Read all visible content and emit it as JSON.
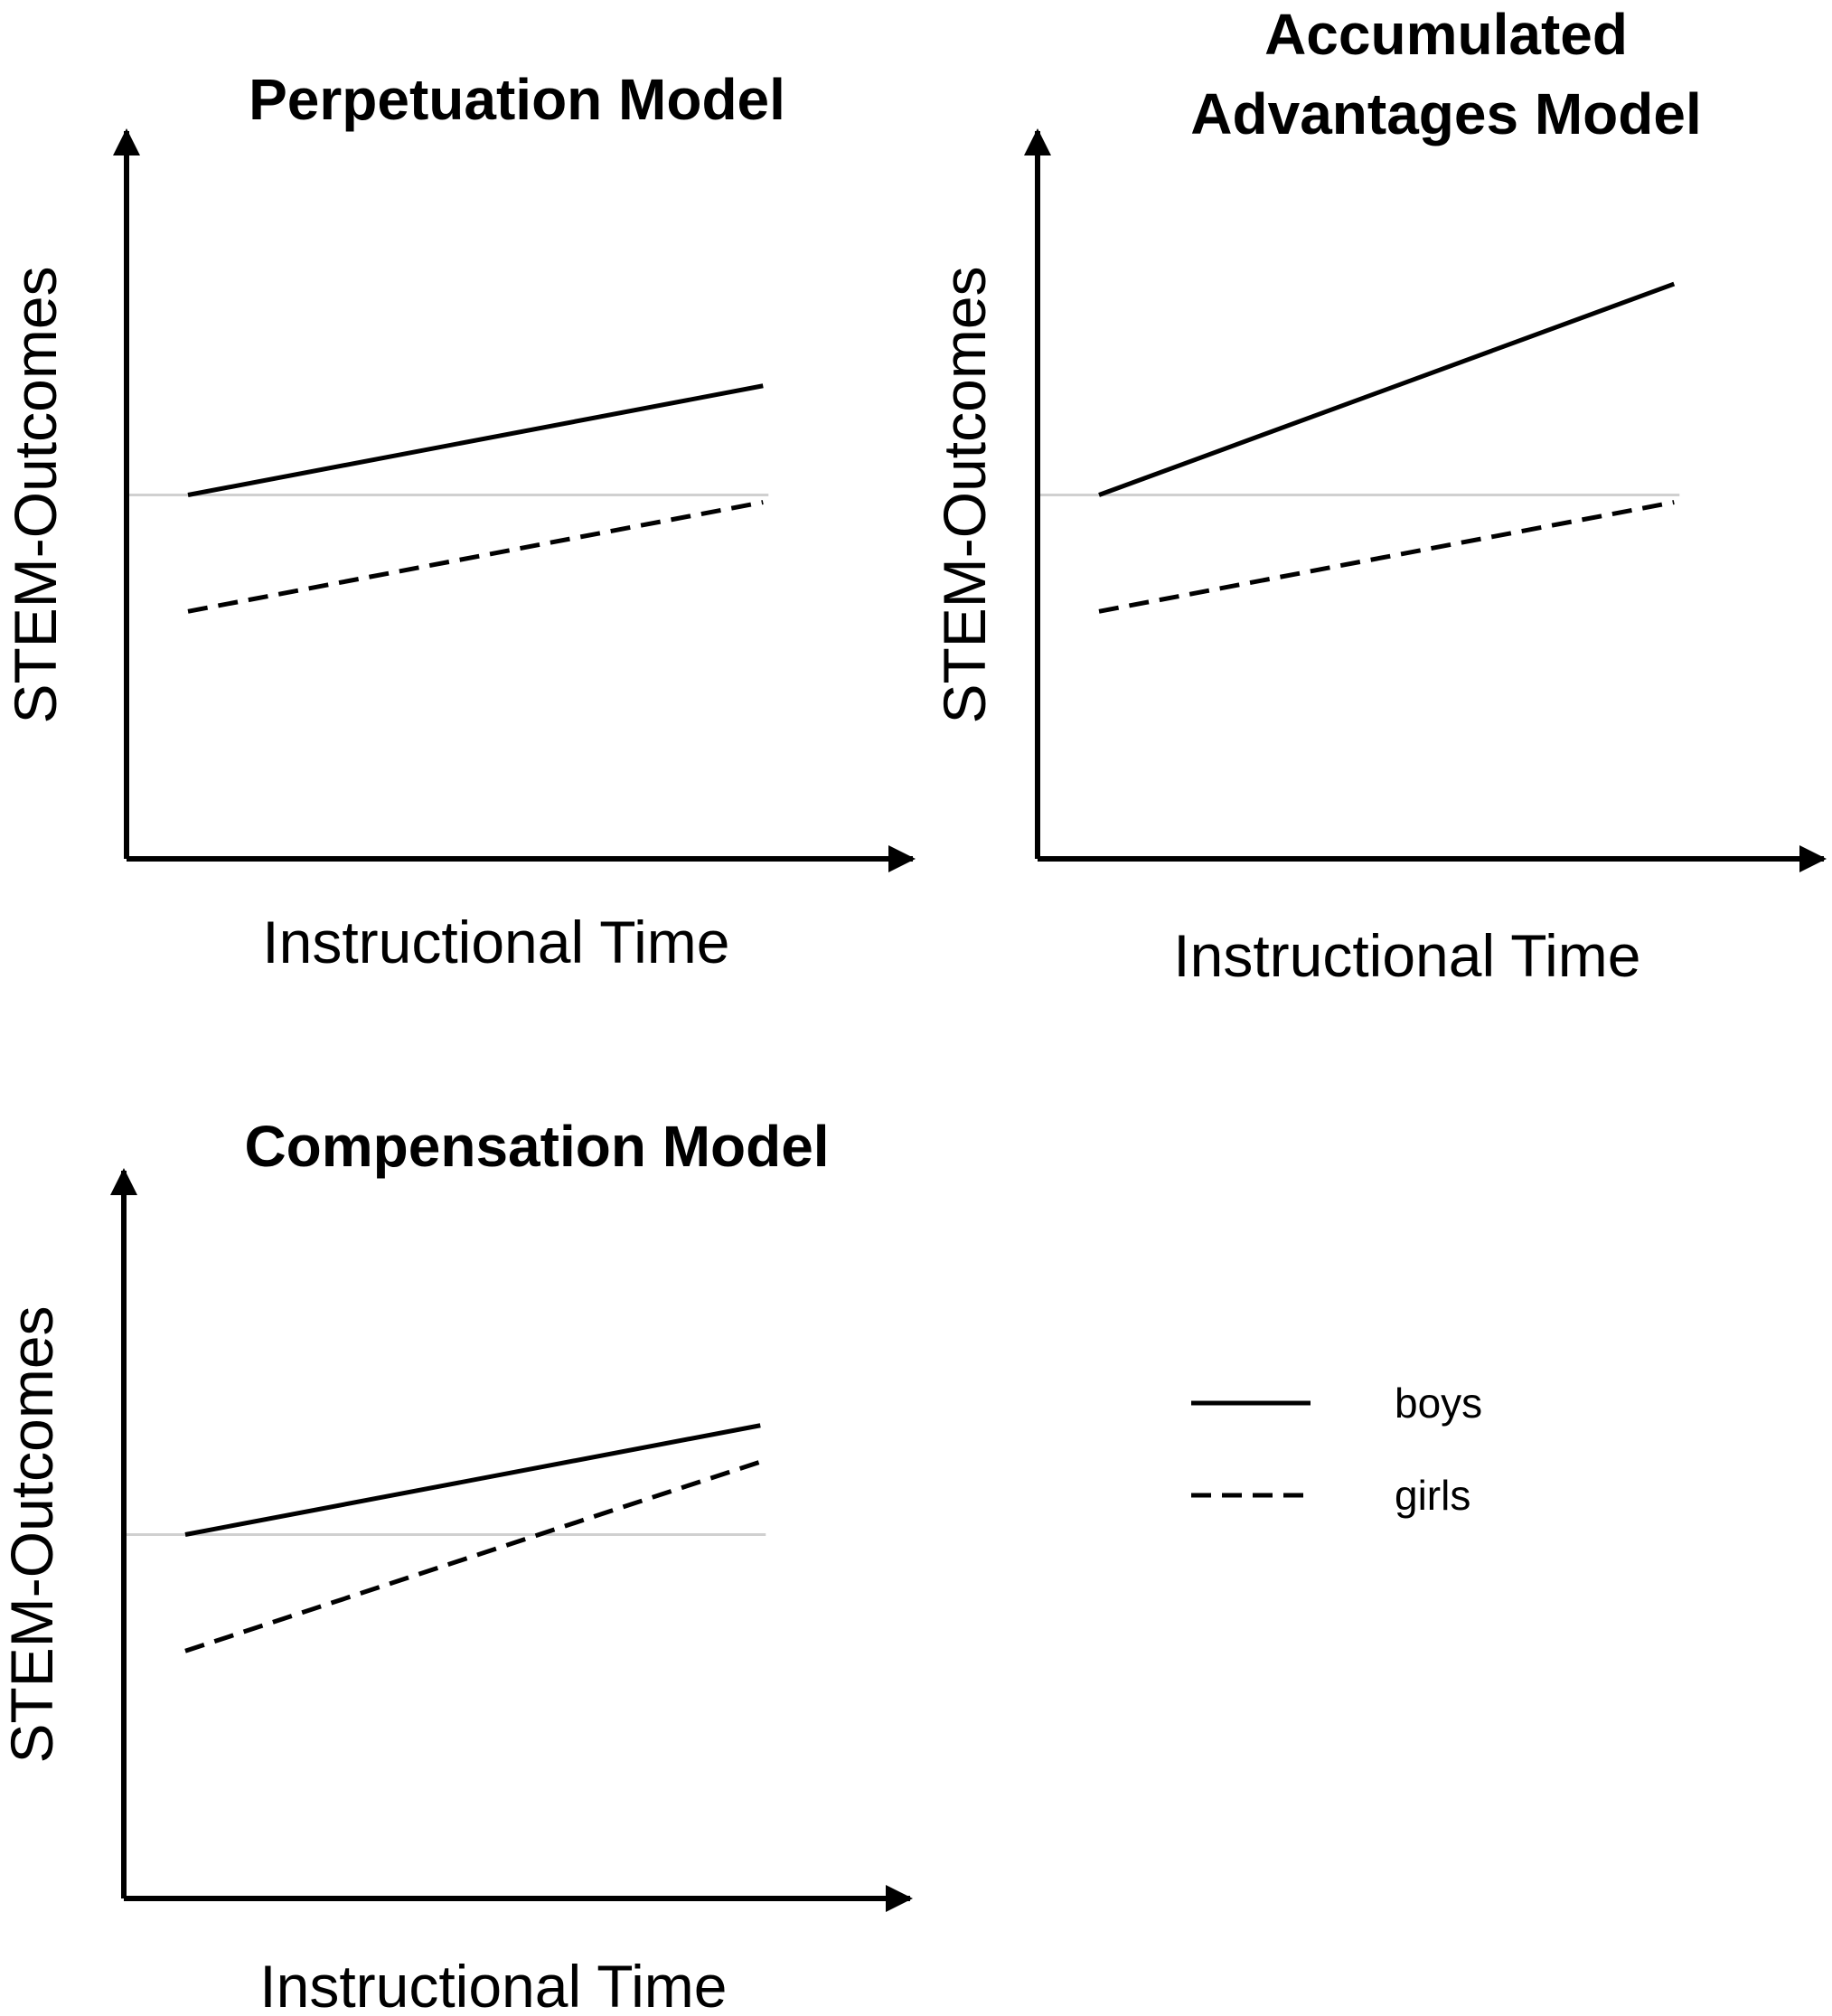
{
  "chart_data": [
    {
      "type": "line",
      "title": "Perpetuation Model",
      "xlabel": "Instructional Time",
      "ylabel": "STEM-Outcomes",
      "x": [
        0,
        1
      ],
      "xlim": [
        0,
        1.34
      ],
      "ylim": [
        0,
        1
      ],
      "reference_line_y": 0.5,
      "series": [
        {
          "name": "boys",
          "values": [
            0.5,
            0.65
          ],
          "style": "solid"
        },
        {
          "name": "girls",
          "values": [
            0.34,
            0.49
          ],
          "style": "dashed"
        }
      ]
    },
    {
      "type": "line",
      "title": "Accumulated\nAdvantages Model",
      "xlabel": "Instructional Time",
      "ylabel": "STEM-Outcomes",
      "x": [
        0,
        1
      ],
      "xlim": [
        0,
        1.34
      ],
      "ylim": [
        0,
        1
      ],
      "reference_line_y": 0.5,
      "series": [
        {
          "name": "boys",
          "values": [
            0.5,
            0.79
          ],
          "style": "solid"
        },
        {
          "name": "girls",
          "values": [
            0.34,
            0.49
          ],
          "style": "dashed"
        }
      ]
    },
    {
      "type": "line",
      "title": "Compensation Model",
      "xlabel": "Instructional Time",
      "ylabel": "STEM-Outcomes",
      "x": [
        0,
        1
      ],
      "xlim": [
        0,
        1.34
      ],
      "ylim": [
        0,
        1
      ],
      "reference_line_y": 0.5,
      "series": [
        {
          "name": "boys",
          "values": [
            0.5,
            0.65
          ],
          "style": "solid"
        },
        {
          "name": "girls",
          "values": [
            0.34,
            0.6
          ],
          "style": "dashed"
        }
      ]
    }
  ],
  "legend": {
    "placement": "lower-right",
    "items": [
      {
        "label": "boys",
        "style": "solid"
      },
      {
        "label": "girls",
        "style": "dashed"
      }
    ]
  },
  "colors": {
    "lines": "#000000",
    "reference": "#d0d0d0",
    "axes": "#000000"
  }
}
